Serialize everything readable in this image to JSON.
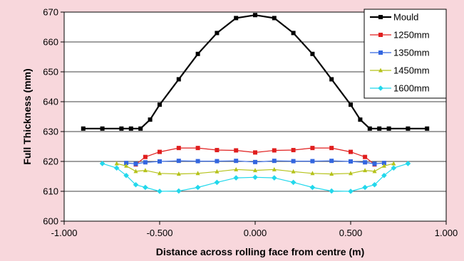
{
  "chart_data": {
    "type": "line",
    "title": "",
    "xlabel": "Distance across rolling face from centre (m)",
    "ylabel": "Full Thickness (mm)",
    "xlim": [
      -1.0,
      1.0
    ],
    "ylim": [
      600,
      670
    ],
    "xticks": [
      -1.0,
      -0.5,
      0.0,
      0.5,
      1.0
    ],
    "xtick_labels": [
      "-1.000",
      "-0.500",
      "0.000",
      "0.500",
      "1.000"
    ],
    "yticks": [
      600,
      610,
      620,
      630,
      640,
      650,
      660,
      670
    ],
    "ytick_labels": [
      "600",
      "610",
      "620",
      "630",
      "640",
      "650",
      "660",
      "670"
    ],
    "grid": {
      "horizontal": true,
      "vertical": false
    },
    "legend": "top-right",
    "series": [
      {
        "name": "Mould",
        "color": "#000000",
        "marker": "square",
        "x": [
          -0.9,
          -0.8,
          -0.7,
          -0.65,
          -0.6,
          -0.55,
          -0.5,
          -0.4,
          -0.3,
          -0.2,
          -0.1,
          0.0,
          0.1,
          0.2,
          0.3,
          0.4,
          0.5,
          0.55,
          0.6,
          0.65,
          0.7,
          0.8,
          0.9
        ],
        "y": [
          631,
          631,
          631,
          631,
          631,
          634,
          639,
          647.5,
          656,
          663,
          668,
          669,
          668,
          663,
          656,
          647.5,
          639,
          634,
          631,
          631,
          631,
          631,
          631
        ]
      },
      {
        "name": "1250mm",
        "color": "#e01e1e",
        "marker": "square",
        "x": [
          -0.625,
          -0.575,
          -0.5,
          -0.4,
          -0.3,
          -0.2,
          -0.1,
          0.0,
          0.1,
          0.2,
          0.3,
          0.4,
          0.5,
          0.575,
          0.625
        ],
        "y": [
          619,
          621.5,
          623.2,
          624.5,
          624.5,
          623.8,
          623.7,
          623.0,
          623.7,
          623.8,
          624.5,
          624.5,
          623.2,
          621.5,
          619
        ]
      },
      {
        "name": "1350mm",
        "color": "#3366e0",
        "marker": "square",
        "x": [
          -0.675,
          -0.625,
          -0.575,
          -0.5,
          -0.4,
          -0.3,
          -0.2,
          -0.1,
          0.0,
          0.1,
          0.2,
          0.3,
          0.4,
          0.5,
          0.575,
          0.625,
          0.675
        ],
        "y": [
          619.5,
          619.2,
          619.7,
          620,
          620.2,
          620.1,
          620.1,
          620.2,
          619.8,
          620.2,
          620.1,
          620.1,
          620.2,
          620,
          619.7,
          619.2,
          619.5
        ]
      },
      {
        "name": "1450mm",
        "color": "#b5c21a",
        "marker": "triangle",
        "x": [
          -0.725,
          -0.675,
          -0.625,
          -0.575,
          -0.5,
          -0.4,
          -0.3,
          -0.2,
          -0.1,
          0.0,
          0.1,
          0.2,
          0.3,
          0.4,
          0.5,
          0.575,
          0.625,
          0.675,
          0.725
        ],
        "y": [
          619.3,
          618.5,
          616.7,
          617,
          616,
          615.8,
          616,
          616.6,
          617.3,
          617,
          617.3,
          616.6,
          616,
          615.8,
          616,
          617,
          616.7,
          618.5,
          619.3
        ]
      },
      {
        "name": "1600mm",
        "color": "#22d8ec",
        "marker": "diamond",
        "x": [
          -0.8,
          -0.725,
          -0.675,
          -0.625,
          -0.575,
          -0.5,
          -0.4,
          -0.3,
          -0.2,
          -0.1,
          0.0,
          0.1,
          0.2,
          0.3,
          0.4,
          0.5,
          0.575,
          0.625,
          0.675,
          0.725,
          0.8
        ],
        "y": [
          619.3,
          617.8,
          615.3,
          612.2,
          611.3,
          610,
          610.1,
          611.3,
          613,
          614.5,
          614.7,
          614.5,
          613,
          611.3,
          610.1,
          610,
          611.3,
          612.2,
          615.3,
          617.8,
          619.3
        ]
      }
    ]
  }
}
